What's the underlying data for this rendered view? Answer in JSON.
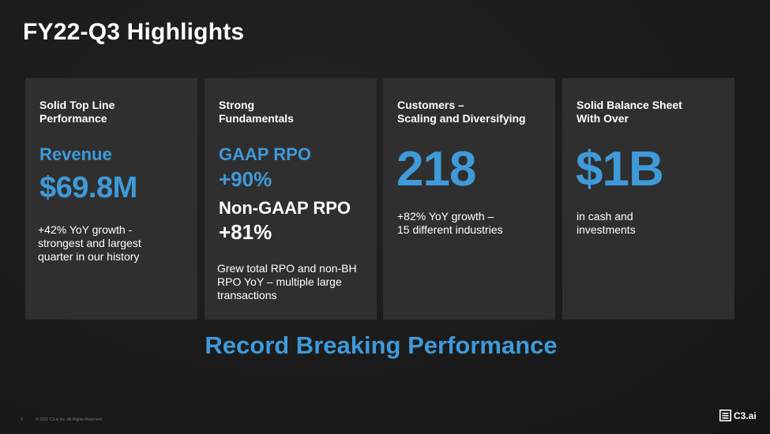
{
  "slide": {
    "title": "FY22-Q3 Highlights",
    "tagline": "Record Breaking Performance",
    "footer": {
      "page_number": "3",
      "copyright": "© 2022 C3.ai Inc. All Rights Reserved."
    },
    "logo_text": "C3.ai"
  },
  "cards": [
    {
      "heading": [
        "Solid Top Line",
        "Performance"
      ],
      "label": "Revenue",
      "value": "$69.8M",
      "description": [
        "+42% YoY growth -",
        "strongest and largest",
        "quarter in our history"
      ]
    },
    {
      "heading": [
        "Strong",
        "Fundamentals"
      ],
      "label": "GAAP RPO",
      "value": "+90%",
      "label2": "Non-GAAP RPO",
      "value2": "+81%",
      "description": [
        "Grew total RPO and non-BH",
        "RPO YoY – multiple large",
        "transactions"
      ]
    },
    {
      "heading": [
        "Customers –",
        "Scaling and Diversifying"
      ],
      "value": "218",
      "description": [
        "+82% YoY growth –",
        "15 different industries"
      ]
    },
    {
      "heading": [
        "Solid Balance Sheet",
        "With Over"
      ],
      "value": "$1B",
      "description": [
        "in cash and",
        "investments"
      ]
    }
  ],
  "colors": {
    "accent": "#3f9ad9",
    "card_bg": "#2f2f2f",
    "page_bg": "#1a1a1a"
  },
  "icons": {
    "logo": "c3-logo-icon"
  }
}
